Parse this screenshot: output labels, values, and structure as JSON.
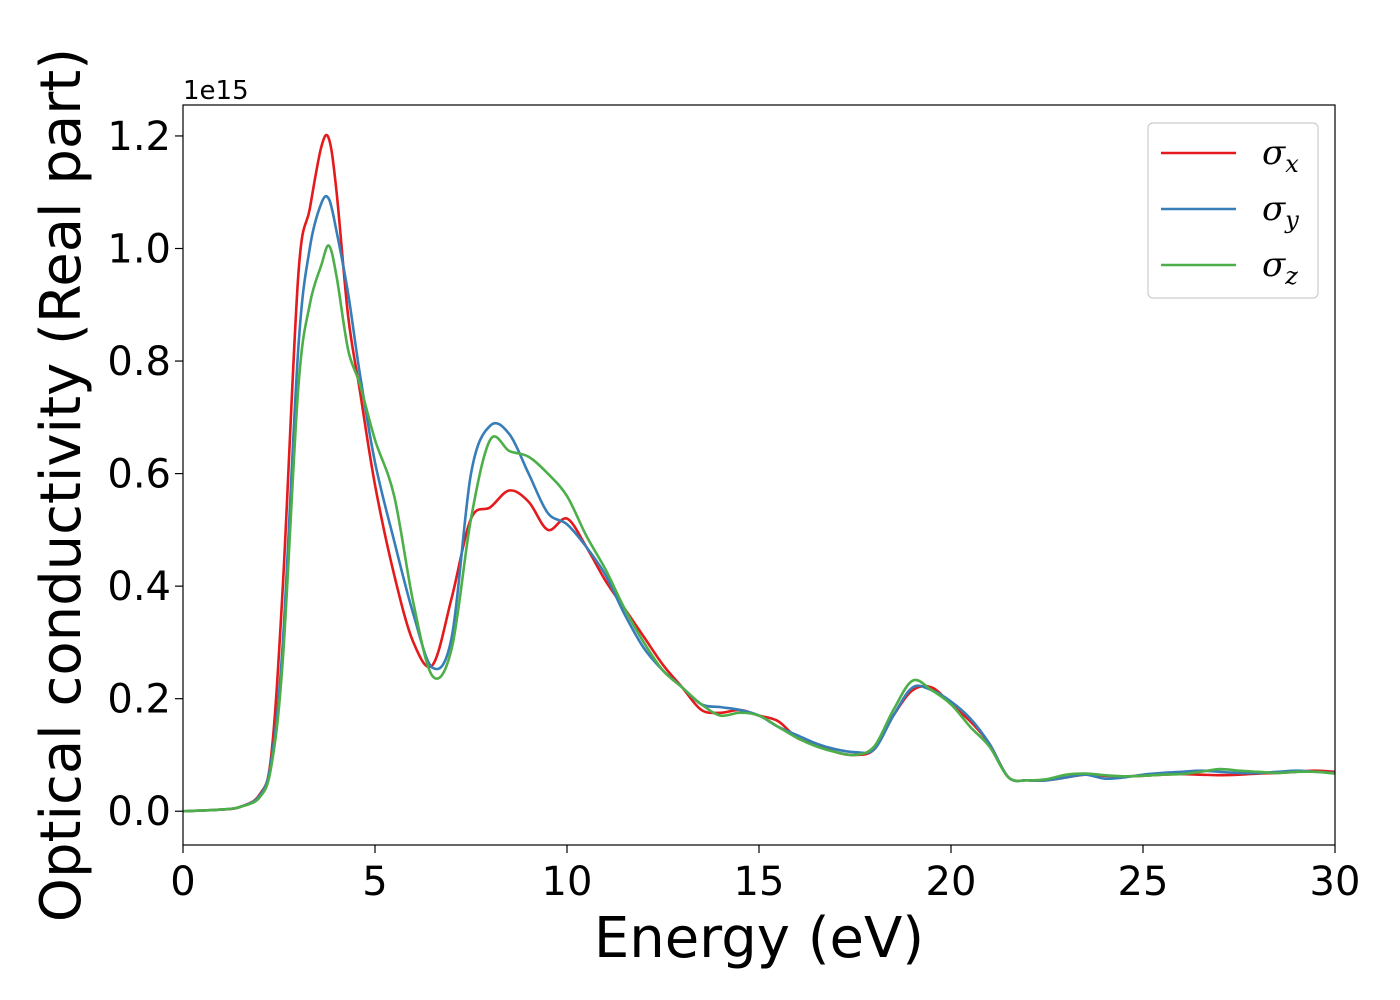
{
  "chart_data": {
    "type": "line",
    "title": "",
    "xlabel": "Energy (eV)",
    "ylabel": "Optical conductivity (Real part)",
    "y_offset_label": "1e15",
    "xlim": [
      0,
      30
    ],
    "ylim": [
      -0.06,
      1.255
    ],
    "xticks": [
      0,
      5,
      10,
      15,
      20,
      25,
      30
    ],
    "yticks": [
      0.0,
      0.2,
      0.4,
      0.6,
      0.8,
      1.0,
      1.2
    ],
    "xtick_labels": [
      "0",
      "5",
      "10",
      "15",
      "20",
      "25",
      "30"
    ],
    "ytick_labels": [
      "0.0",
      "0.2",
      "0.4",
      "0.6",
      "0.8",
      "1.0",
      "1.2"
    ],
    "grid": false,
    "legend_position": "top-right",
    "series": [
      {
        "name": "σ",
        "name_sub": "x",
        "color": "#e41a1c",
        "x": [
          0,
          1,
          1.5,
          2,
          2.3,
          2.6,
          3,
          3.3,
          3.6,
          3.8,
          4,
          4.3,
          4.6,
          5,
          5.5,
          6,
          6.5,
          7,
          7.5,
          8,
          8.5,
          9,
          9.5,
          10,
          10.5,
          11,
          11.5,
          12,
          12.5,
          13,
          13.5,
          14,
          14.5,
          15,
          15.5,
          16,
          16.5,
          17,
          17.5,
          18,
          18.5,
          19,
          19.5,
          20,
          20.5,
          21,
          21.5,
          22,
          22.5,
          23,
          23.5,
          24,
          24.5,
          25,
          25.5,
          26,
          26.5,
          27,
          27.5,
          28,
          28.5,
          29,
          29.5,
          30
        ],
        "y": [
          0,
          0.003,
          0.008,
          0.03,
          0.1,
          0.4,
          0.95,
          1.07,
          1.18,
          1.195,
          1.1,
          0.88,
          0.75,
          0.58,
          0.42,
          0.3,
          0.26,
          0.38,
          0.52,
          0.54,
          0.57,
          0.55,
          0.5,
          0.52,
          0.47,
          0.41,
          0.36,
          0.31,
          0.26,
          0.22,
          0.18,
          0.175,
          0.18,
          0.17,
          0.16,
          0.13,
          0.12,
          0.105,
          0.1,
          0.11,
          0.17,
          0.215,
          0.22,
          0.19,
          0.16,
          0.12,
          0.06,
          0.055,
          0.055,
          0.06,
          0.065,
          0.063,
          0.062,
          0.063,
          0.065,
          0.066,
          0.065,
          0.064,
          0.065,
          0.067,
          0.068,
          0.07,
          0.072,
          0.07
        ]
      },
      {
        "name": "σ",
        "name_sub": "y",
        "color": "#377eb8",
        "x": [
          0,
          1,
          1.5,
          2,
          2.3,
          2.6,
          3,
          3.3,
          3.6,
          3.8,
          4,
          4.3,
          4.6,
          5,
          5.5,
          6,
          6.5,
          7,
          7.5,
          8,
          8.5,
          9,
          9.5,
          10,
          10.5,
          11,
          11.5,
          12,
          12.5,
          13,
          13.5,
          14,
          14.5,
          15,
          15.5,
          16,
          16.5,
          17,
          17.5,
          18,
          18.5,
          19,
          19.5,
          20,
          20.5,
          21,
          21.5,
          22,
          22.5,
          23,
          23.5,
          24,
          24.5,
          25,
          25.5,
          26,
          26.5,
          27,
          27.5,
          28,
          28.5,
          29,
          29.5,
          30
        ],
        "y": [
          0,
          0.003,
          0.008,
          0.028,
          0.09,
          0.3,
          0.82,
          1.0,
          1.08,
          1.088,
          1.03,
          0.92,
          0.78,
          0.62,
          0.48,
          0.35,
          0.255,
          0.31,
          0.6,
          0.685,
          0.67,
          0.6,
          0.53,
          0.51,
          0.47,
          0.42,
          0.35,
          0.29,
          0.25,
          0.22,
          0.19,
          0.185,
          0.18,
          0.17,
          0.15,
          0.135,
          0.12,
          0.11,
          0.105,
          0.11,
          0.17,
          0.22,
          0.215,
          0.195,
          0.165,
          0.12,
          0.06,
          0.055,
          0.055,
          0.06,
          0.065,
          0.058,
          0.06,
          0.065,
          0.068,
          0.07,
          0.072,
          0.07,
          0.068,
          0.068,
          0.07,
          0.072,
          0.07,
          0.068
        ]
      },
      {
        "name": "σ",
        "name_sub": "z",
        "color": "#4daf4a",
        "x": [
          0,
          1,
          1.5,
          2,
          2.3,
          2.6,
          3,
          3.3,
          3.6,
          3.8,
          4,
          4.3,
          4.6,
          5,
          5.5,
          6,
          6.5,
          7,
          7.5,
          8,
          8.5,
          9,
          9.5,
          10,
          10.5,
          11,
          11.5,
          12,
          12.5,
          13,
          13.5,
          14,
          14.5,
          15,
          15.5,
          16,
          16.5,
          17,
          17.5,
          18,
          18.5,
          19,
          19.5,
          20,
          20.5,
          21,
          21.5,
          22,
          22.5,
          23,
          23.5,
          24,
          24.5,
          25,
          25.5,
          26,
          26.5,
          27,
          27.5,
          28,
          28.5,
          29,
          29.5,
          30
        ],
        "y": [
          0,
          0.003,
          0.008,
          0.025,
          0.08,
          0.27,
          0.75,
          0.9,
          0.97,
          1.005,
          0.95,
          0.82,
          0.76,
          0.66,
          0.56,
          0.37,
          0.24,
          0.29,
          0.52,
          0.66,
          0.64,
          0.63,
          0.6,
          0.56,
          0.49,
          0.43,
          0.36,
          0.3,
          0.25,
          0.22,
          0.19,
          0.17,
          0.175,
          0.17,
          0.15,
          0.13,
          0.115,
          0.105,
          0.1,
          0.115,
          0.18,
          0.232,
          0.215,
          0.19,
          0.15,
          0.115,
          0.06,
          0.055,
          0.057,
          0.065,
          0.067,
          0.064,
          0.062,
          0.063,
          0.065,
          0.066,
          0.07,
          0.075,
          0.072,
          0.07,
          0.068,
          0.07,
          0.07,
          0.067
        ]
      }
    ]
  }
}
